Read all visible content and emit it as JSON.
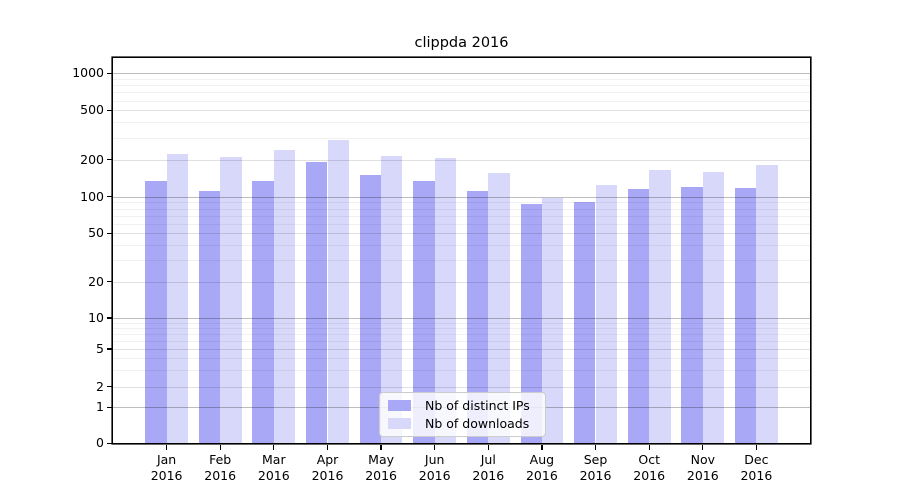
{
  "chart_data": {
    "type": "bar",
    "title": "clippda 2016",
    "categories": [
      "Jan\n2016",
      "Feb\n2016",
      "Mar\n2016",
      "Apr\n2016",
      "May\n2016",
      "Jun\n2016",
      "Jul\n2016",
      "Aug\n2016",
      "Sep\n2016",
      "Oct\n2016",
      "Nov\n2016",
      "Dec\n2016"
    ],
    "series": [
      {
        "name": "Nb of distinct IPs",
        "color": "#a8a8f6",
        "values": [
          133,
          111,
          133,
          192,
          150,
          134,
          111,
          87,
          91,
          115,
          120,
          118
        ]
      },
      {
        "name": "Nb of downloads",
        "color": "#d8d8fa",
        "values": [
          220,
          210,
          240,
          288,
          213,
          206,
          155,
          98,
          124,
          164,
          160,
          182
        ]
      }
    ],
    "yscale": "symlog",
    "yticks": [
      1000,
      500,
      200,
      100,
      50,
      20,
      10,
      5,
      2,
      1,
      0
    ],
    "ylim": [
      0,
      1300
    ],
    "grid": true,
    "legend_position": "lower center",
    "colors": {
      "axis": "#000000",
      "grid_major": "#c0c0c0",
      "grid_minor": "#eeeeee",
      "background": "#ffffff"
    }
  }
}
